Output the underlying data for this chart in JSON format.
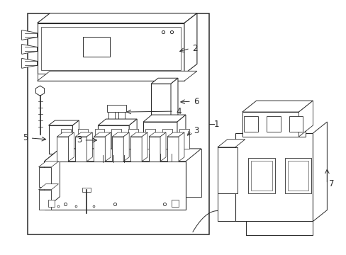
{
  "background_color": "#ffffff",
  "line_color": "#2a2a2a",
  "lw": 0.8,
  "figsize": [
    4.89,
    3.6
  ],
  "dpi": 100
}
